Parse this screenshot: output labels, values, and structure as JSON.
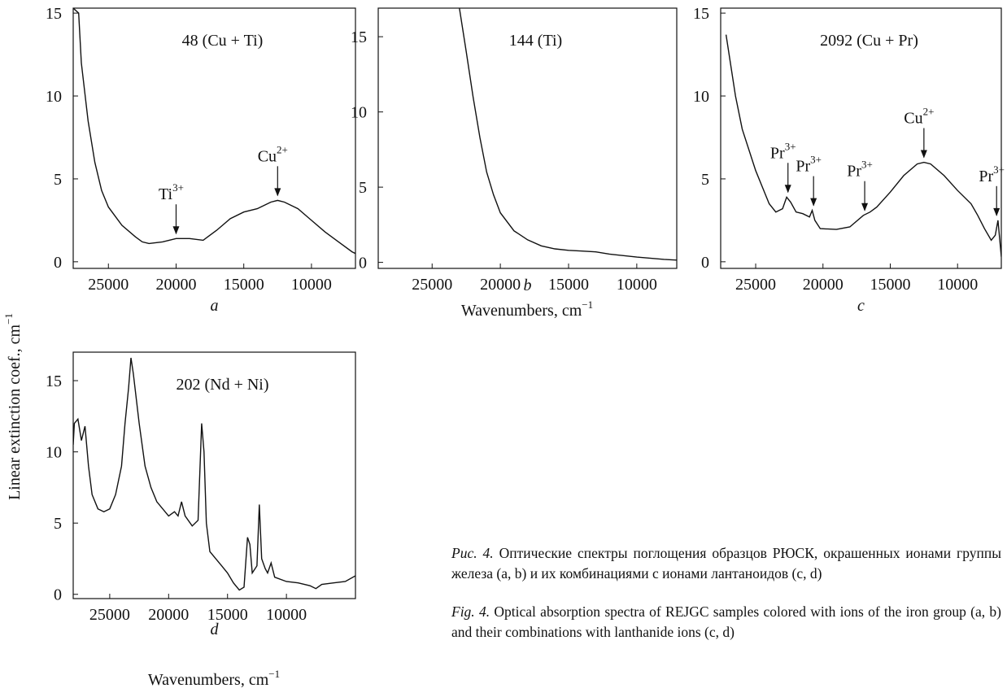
{
  "chart_data": [
    {
      "type": "line",
      "title": "48 (Cu + Ti)",
      "panel_label": "a",
      "x": [
        27600,
        27200,
        27000,
        26500,
        26000,
        25500,
        25000,
        24000,
        23000,
        22500,
        22000,
        21000,
        20000,
        19000,
        18000,
        17000,
        16000,
        15000,
        14000,
        13000,
        12500,
        12000,
        11000,
        10000,
        9000,
        8000,
        7000,
        6750
      ],
      "values": [
        15.3,
        15,
        12,
        8.5,
        6,
        4.3,
        3.3,
        2.2,
        1.5,
        1.2,
        1.1,
        1.2,
        1.4,
        1.4,
        1.3,
        1.9,
        2.6,
        3.0,
        3.2,
        3.6,
        3.7,
        3.6,
        3.2,
        2.5,
        1.8,
        1.2,
        0.6,
        0.5
      ],
      "xlim": [
        27600,
        6750
      ],
      "ylim": [
        -0.4,
        15.3
      ],
      "xticks": [
        25000,
        20000,
        15000,
        10000
      ],
      "yticks": [
        0,
        5,
        10,
        15
      ],
      "annotations": [
        {
          "label": "Ti",
          "sup": "3+",
          "x": 20000,
          "y": 1.6
        },
        {
          "label": "Cu",
          "sup": "2+",
          "x": 12500,
          "y": 3.9
        }
      ]
    },
    {
      "type": "line",
      "title": "144 (Ti)",
      "panel_label": "b",
      "x": [
        23000,
        22500,
        22000,
        21500,
        21000,
        20500,
        20000,
        19000,
        18000,
        17000,
        16000,
        15000,
        14000,
        13000,
        12000,
        10000,
        8000,
        7070
      ],
      "values": [
        16.9,
        14,
        11,
        8.3,
        6,
        4.5,
        3.3,
        2.1,
        1.5,
        1.1,
        0.9,
        0.8,
        0.75,
        0.7,
        0.55,
        0.35,
        0.2,
        0.15
      ],
      "xlim": [
        28950,
        7070
      ],
      "ylim": [
        -0.4,
        16.9
      ],
      "xticks": [
        25000,
        20000,
        15000,
        10000
      ],
      "yticks": [
        0,
        5,
        10,
        15
      ],
      "annotations": []
    },
    {
      "type": "line",
      "title": "2092 (Cu + Pr)",
      "panel_label": "c",
      "x": [
        27200,
        26500,
        26000,
        25000,
        24500,
        24000,
        23500,
        23000,
        22700,
        22400,
        22000,
        21500,
        21000,
        20800,
        20600,
        20200,
        19000,
        18000,
        17000,
        16500,
        16000,
        15000,
        14000,
        13000,
        12500,
        12000,
        11000,
        10000,
        9000,
        8500,
        8000,
        7500,
        7200,
        7000,
        6750
      ],
      "values": [
        13.7,
        10,
        8,
        5.5,
        4.5,
        3.5,
        3.0,
        3.2,
        3.9,
        3.6,
        3.0,
        2.9,
        2.7,
        3.1,
        2.5,
        2.0,
        1.95,
        2.1,
        2.8,
        3.0,
        3.3,
        4.2,
        5.2,
        5.9,
        6.0,
        5.9,
        5.2,
        4.3,
        3.5,
        2.8,
        2.0,
        1.3,
        1.6,
        2.5,
        0.3
      ],
      "xlim": [
        27600,
        6750
      ],
      "ylim": [
        -0.4,
        15.3
      ],
      "xticks": [
        25000,
        20000,
        15000,
        10000
      ],
      "yticks": [
        0,
        5,
        10,
        15
      ],
      "annotations": [
        {
          "label": "Pr",
          "sup": "3+",
          "x": 22600,
          "y": 4.1
        },
        {
          "label": "Pr",
          "sup": "3+",
          "x": 20700,
          "y": 3.3
        },
        {
          "label": "Pr",
          "sup": "3+",
          "x": 16900,
          "y": 3.0
        },
        {
          "label": "Cu",
          "sup": "2+",
          "x": 12500,
          "y": 6.2
        },
        {
          "label": "Pr",
          "sup": "3+",
          "x": 7100,
          "y": 2.7
        }
      ]
    },
    {
      "type": "line",
      "title": "202 (Nd + Ni)",
      "panel_label": "d",
      "x": [
        28100,
        28000,
        27700,
        27400,
        27100,
        26800,
        26500,
        26000,
        25500,
        25000,
        24500,
        24000,
        23700,
        23400,
        23200,
        23000,
        22500,
        22000,
        21500,
        21000,
        20000,
        19500,
        19200,
        18900,
        18600,
        18000,
        17500,
        17200,
        17000,
        16800,
        16500,
        15500,
        15000,
        14500,
        14000,
        13600,
        13300,
        13100,
        12900,
        12500,
        12300,
        12100,
        11800,
        11600,
        11300,
        11000,
        10000,
        9000,
        8000,
        7500,
        7000,
        6000,
        5000,
        4140
      ],
      "values": [
        10.5,
        12,
        12.3,
        10.8,
        11.8,
        9,
        7,
        6.0,
        5.8,
        6.0,
        7.0,
        9,
        12,
        14.5,
        16.6,
        15.5,
        12,
        9,
        7.5,
        6.5,
        5.5,
        5.8,
        5.5,
        6.5,
        5.5,
        4.8,
        5.2,
        12,
        10,
        5,
        3,
        2,
        1.5,
        0.8,
        0.3,
        0.5,
        4,
        3.5,
        1.5,
        2,
        6.3,
        2.5,
        1.8,
        1.5,
        2.2,
        1.2,
        0.9,
        0.8,
        0.6,
        0.4,
        0.7,
        0.8,
        0.9,
        1.3
      ],
      "xlim": [
        28100,
        4140
      ],
      "ylim": [
        -0.3,
        17
      ],
      "xticks": [
        25000,
        20000,
        15000,
        10000
      ],
      "yticks": [
        0,
        5,
        10,
        15
      ],
      "annotations": []
    }
  ],
  "xlabel": "Wavenumbers, cm",
  "xlabel_sup": "−1",
  "ylabel": "Linear extinction coef., cm",
  "ylabel_sup": "−1",
  "caption_ru": {
    "label": "Рис. 4.",
    "text": "Оптические спектры поглощения образцов РЮСК, окрашенных ионами группы железа (a, b) и их комбинациями с ионами лантаноидов (c, d)"
  },
  "caption_en": {
    "label": "Fig. 4.",
    "text": "Optical absorption spectra of REJGC samples colored with ions of the iron group (a, b) and their combinations with lanthanide ions (c, d)"
  }
}
